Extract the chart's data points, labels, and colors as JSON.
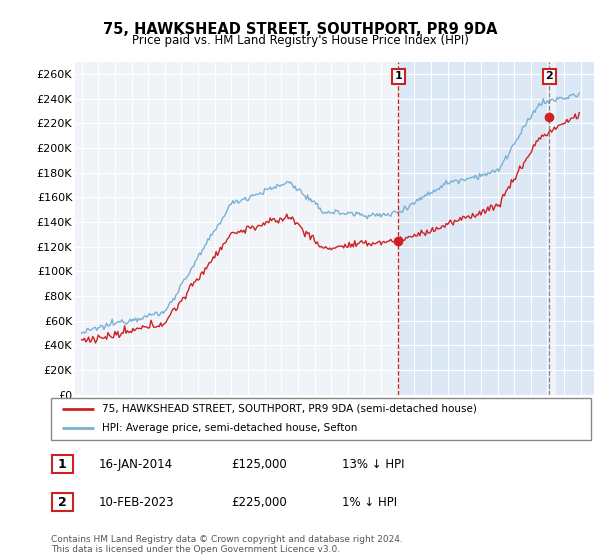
{
  "title": "75, HAWKSHEAD STREET, SOUTHPORT, PR9 9DA",
  "subtitle": "Price paid vs. HM Land Registry's House Price Index (HPI)",
  "ylabel_ticks": [
    "£0",
    "£20K",
    "£40K",
    "£60K",
    "£80K",
    "£100K",
    "£120K",
    "£140K",
    "£160K",
    "£180K",
    "£200K",
    "£220K",
    "£240K",
    "£260K"
  ],
  "ytick_vals": [
    0,
    20000,
    40000,
    60000,
    80000,
    100000,
    120000,
    140000,
    160000,
    180000,
    200000,
    220000,
    240000,
    260000
  ],
  "ylim": [
    0,
    270000
  ],
  "xlim_start": 1994.6,
  "xlim_end": 2025.8,
  "xticks": [
    1995,
    1996,
    1997,
    1998,
    1999,
    2000,
    2001,
    2002,
    2003,
    2004,
    2005,
    2006,
    2007,
    2008,
    2009,
    2010,
    2011,
    2012,
    2013,
    2014,
    2015,
    2016,
    2017,
    2018,
    2019,
    2020,
    2021,
    2022,
    2023,
    2024,
    2025
  ],
  "hpi_color": "#7ab0d4",
  "price_color": "#cc2222",
  "sale1_date": 2014.04,
  "sale1_price": 125000,
  "sale2_date": 2023.12,
  "sale2_price": 225000,
  "shade_start": 2014.04,
  "shade_end": 2023.12,
  "hatch_start": 2023.5,
  "legend_label1": "75, HAWKSHEAD STREET, SOUTHPORT, PR9 9DA (semi-detached house)",
  "legend_label2": "HPI: Average price, semi-detached house, Sefton",
  "table_row1": [
    "1",
    "16-JAN-2014",
    "£125,000",
    "13% ↓ HPI"
  ],
  "table_row2": [
    "2",
    "10-FEB-2023",
    "£225,000",
    "1% ↓ HPI"
  ],
  "footnote": "Contains HM Land Registry data © Crown copyright and database right 2024.\nThis data is licensed under the Open Government Licence v3.0.",
  "bg_color": "#ffffff",
  "plot_bg_color": "#f0f4f8",
  "grid_color": "#ffffff",
  "shade_color": "#dce8f5",
  "hatch_color": "#dce8f5"
}
